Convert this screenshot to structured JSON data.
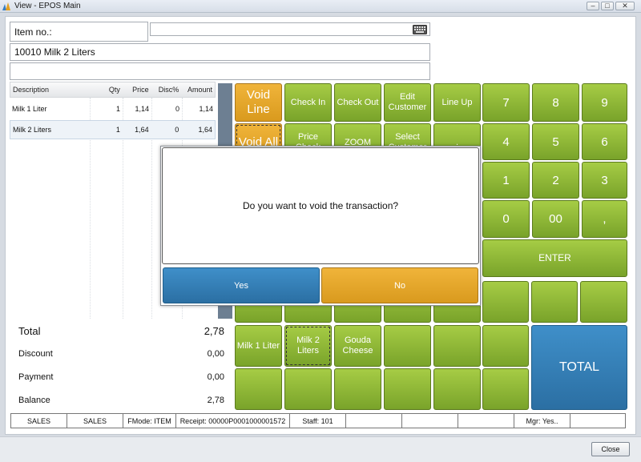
{
  "window": {
    "title": "View - EPOS Main",
    "minimize": "–",
    "maximize": "□",
    "close": "✕"
  },
  "item_no": {
    "label": "Item no.:",
    "value": ""
  },
  "selected_item": "10010 Milk 2 Liters",
  "extra_field": "",
  "table": {
    "headers": {
      "description": "Description",
      "qty": "Qty",
      "price": "Price",
      "disc": "Disc%",
      "amount": "Amount"
    },
    "rows": [
      {
        "description": "Milk 1 Liter",
        "qty": "1",
        "price": "1,14",
        "disc": "0",
        "amount": "1,14"
      },
      {
        "description": "Milk 2 Liters",
        "qty": "1",
        "price": "1,64",
        "disc": "0",
        "amount": "1,64"
      }
    ]
  },
  "totals": {
    "total_label": "Total",
    "total_value": "2,78",
    "discount_label": "Discount",
    "discount_value": "0,00",
    "payment_label": "Payment",
    "payment_value": "0,00",
    "balance_label": "Balance",
    "balance_value": "2,78"
  },
  "buttons": {
    "void_line": "Void Line",
    "void_all": "Void All",
    "check_in": "Check In",
    "check_out": "Check Out",
    "edit_customer": "Edit Customer",
    "line_up": "Line Up",
    "price_check": "Price Check",
    "zoom": "ZOOM",
    "select_customer": "Select Customer",
    "milk1": "Milk 1 Liter",
    "milk2": "Milk 2 Liters",
    "gouda": "Gouda Cheese",
    "total": "TOTAL",
    "enter": "ENTER",
    "dot": "."
  },
  "keypad": [
    "7",
    "8",
    "9",
    "4",
    "5",
    "6",
    "1",
    "2",
    "3",
    "0",
    "00",
    ","
  ],
  "dialog": {
    "message": "Do you want to void the transaction?",
    "yes": "Yes",
    "no": "No"
  },
  "status_bar": [
    "SALES",
    "SALES",
    "FMode: ITEM",
    "Receipt: 00000P0001000001572",
    "Staff: 101",
    "",
    "",
    "",
    "Mgr: Yes..",
    ""
  ],
  "footer": {
    "close": "Close"
  },
  "colors": {
    "green": "#8fb737",
    "orange": "#e4a52a",
    "blue": "#2f77ad",
    "divider": "#6d7f92"
  }
}
